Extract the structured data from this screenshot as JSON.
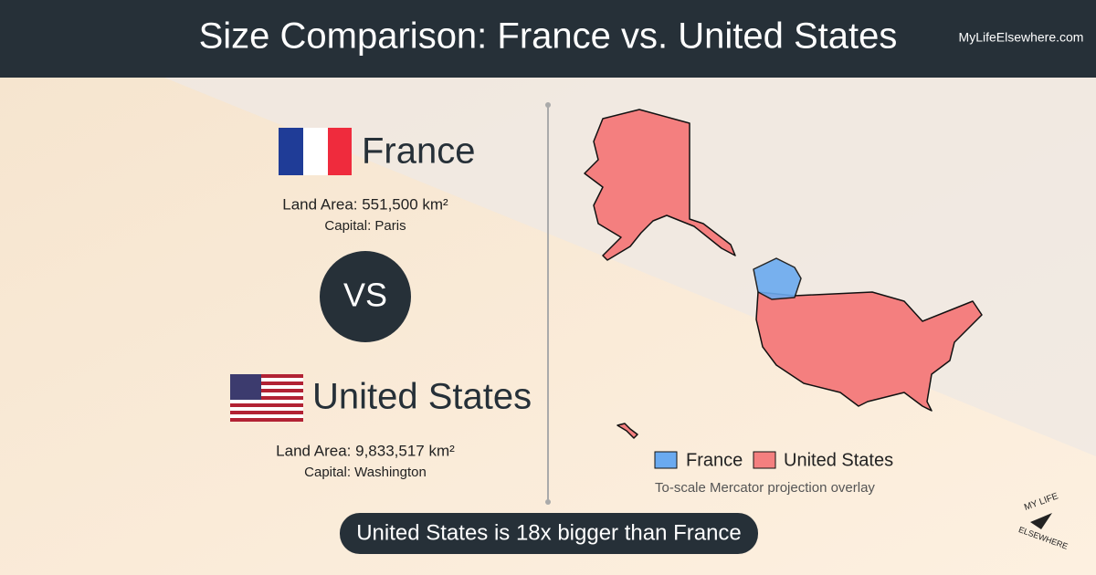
{
  "header": {
    "title": "Size Comparison: France vs. United States",
    "site": "MyLifeElsewhere.com"
  },
  "countries": [
    {
      "name": "France",
      "land_area": "Land Area: 551,500 km²",
      "capital": "Capital: Paris"
    },
    {
      "name": "United States",
      "land_area": "Land Area: 9,833,517 km²",
      "capital": "Capital: Washington"
    }
  ],
  "vs": "VS",
  "legend": [
    "France",
    "United States"
  ],
  "note": "To-scale Mercator projection overlay",
  "banner": "United States is 18x bigger than France",
  "logo": [
    "MY LIFE",
    "ELSEWHERE"
  ]
}
